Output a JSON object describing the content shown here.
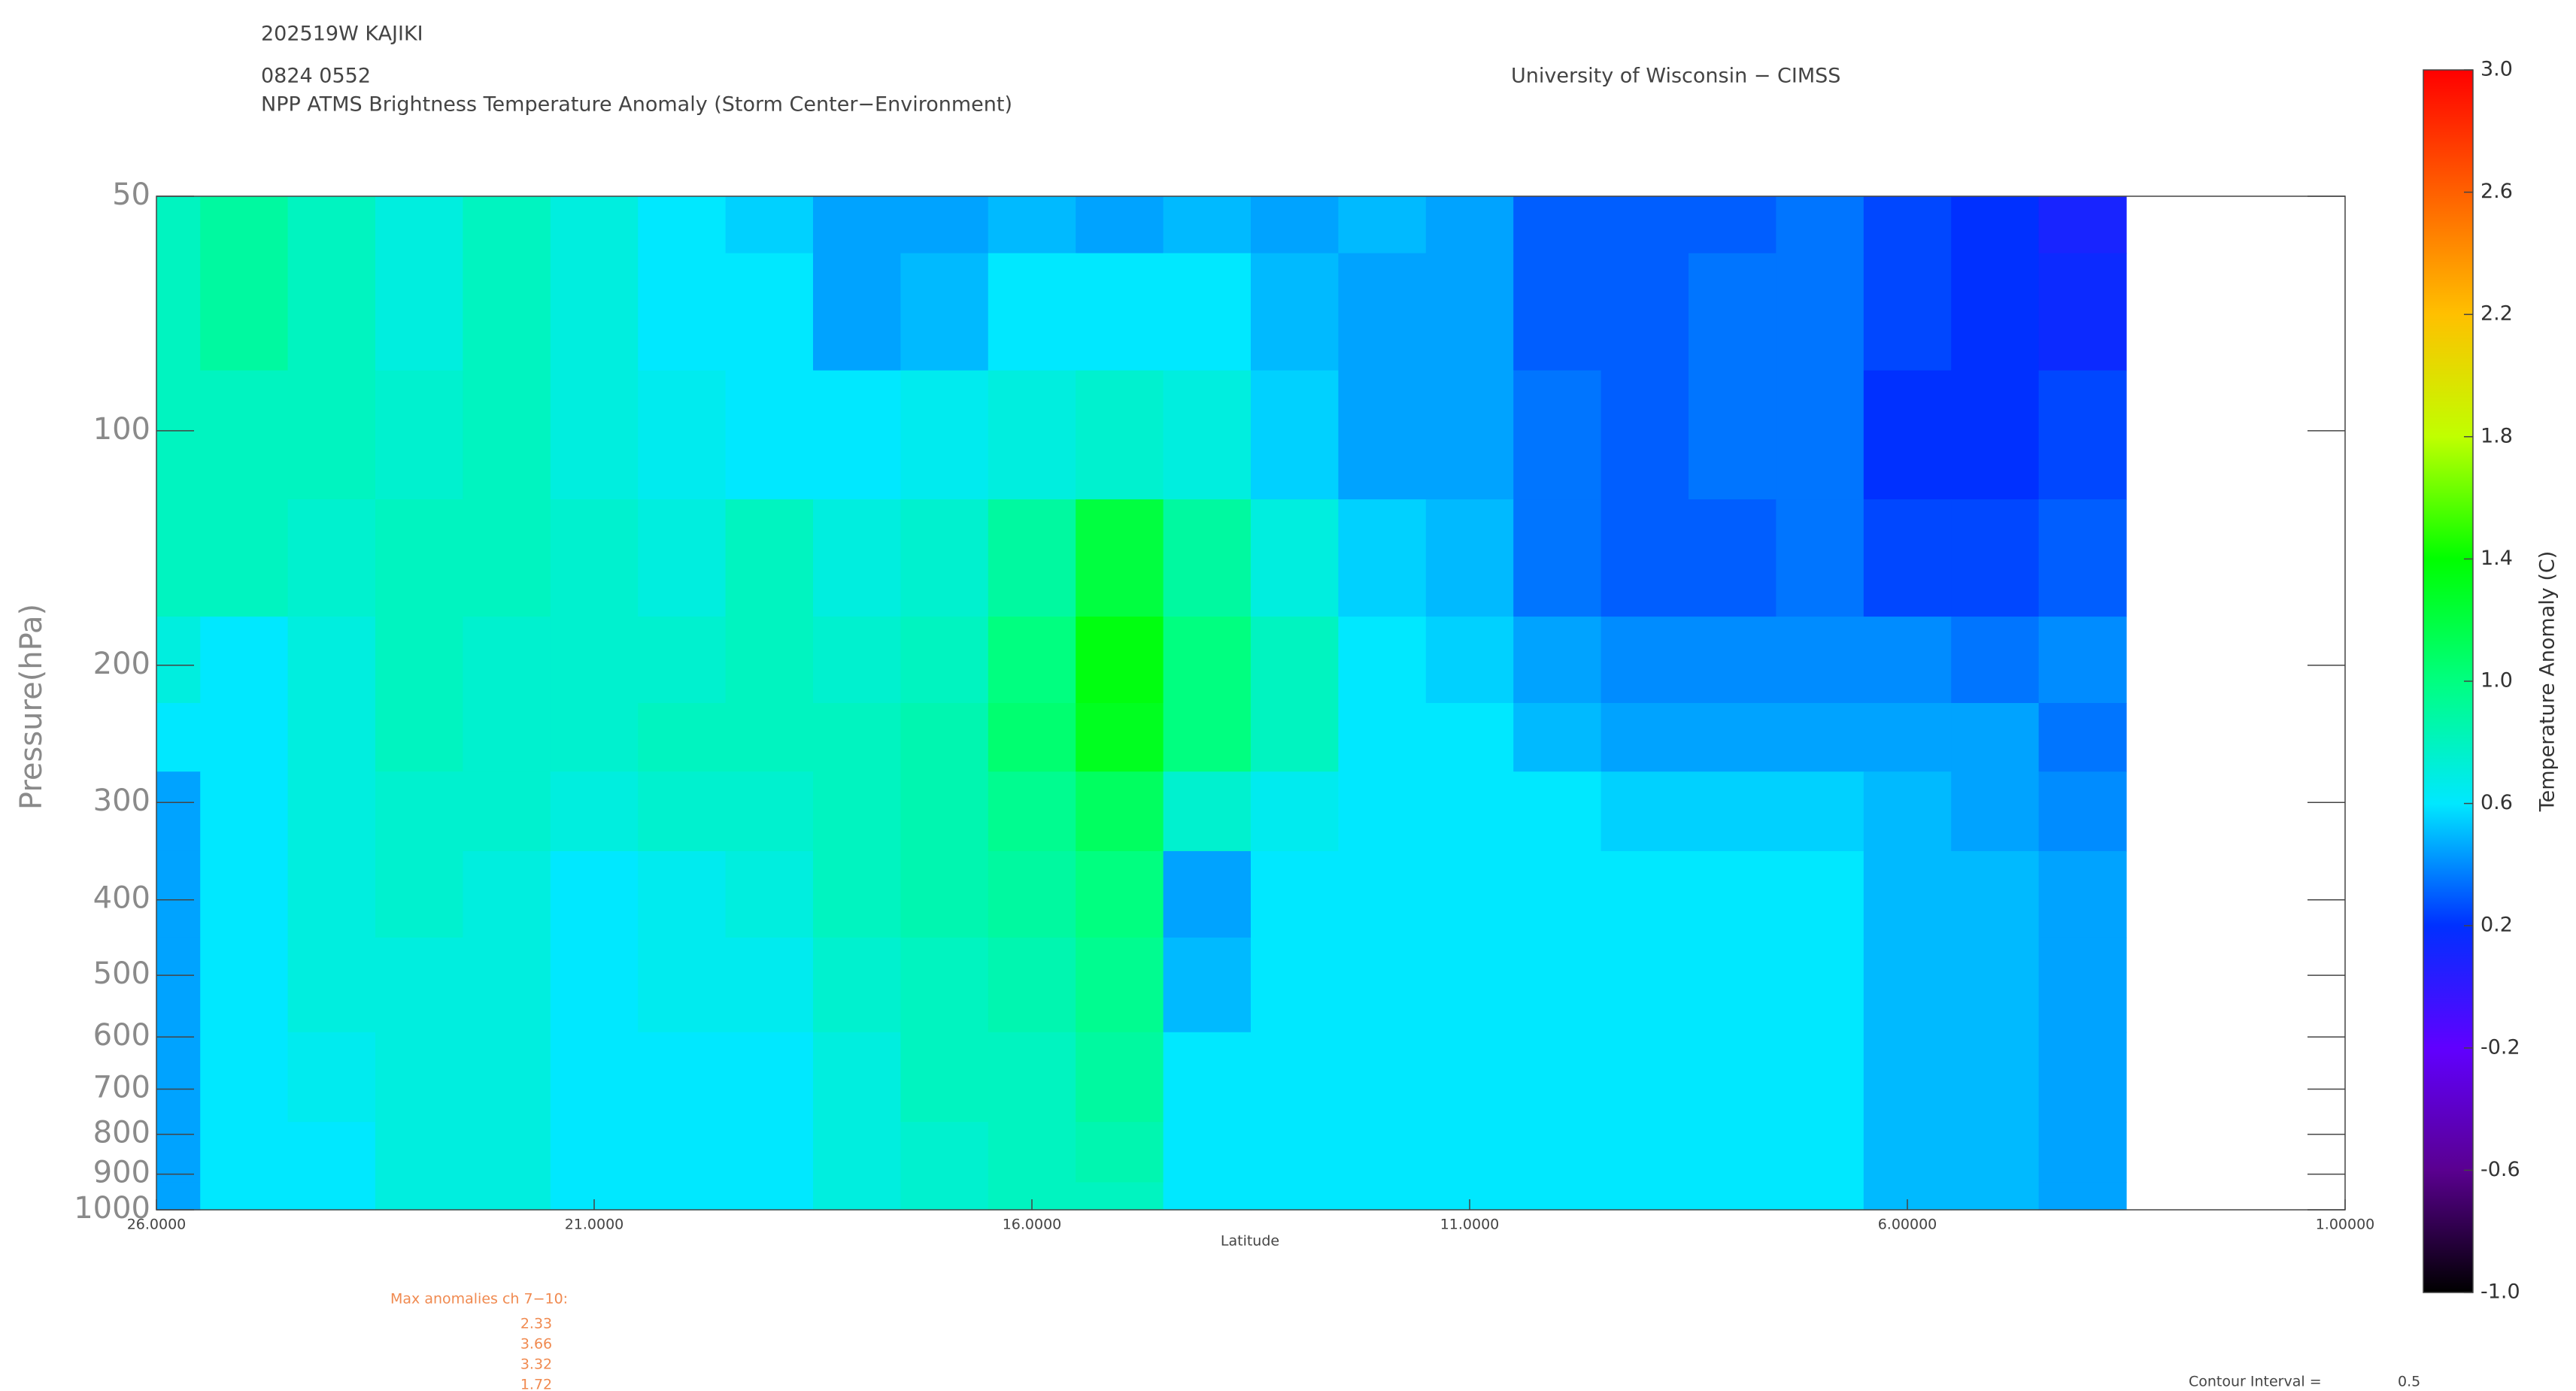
{
  "chart_data": {
    "type": "heatmap",
    "id": "202519W KAJIKI",
    "datetime": "0824 0552",
    "title": "NPP ATMS Brightness Temperature Anomaly (Storm Center−Environment)",
    "source": "University of Wisconsin − CIMSS",
    "xlabel": "Latitude",
    "ylabel": "Pressure(hPa)",
    "xlim": [
      26,
      1
    ],
    "xticks": [
      {
        "value": 26,
        "label": "26.0000"
      },
      {
        "value": 21,
        "label": "21.0000"
      },
      {
        "value": 16,
        "label": "16.0000"
      },
      {
        "value": 11,
        "label": "11.0000"
      },
      {
        "value": 6,
        "label": "6.00000"
      },
      {
        "value": 1,
        "label": "1.00000"
      }
    ],
    "ylim": [
      50,
      1000
    ],
    "yscale": "log",
    "yticks": [
      50,
      100,
      200,
      300,
      400,
      500,
      600,
      700,
      800,
      900,
      1000
    ],
    "x": [
      26,
      25,
      24,
      23,
      22,
      21,
      20,
      19,
      18,
      17,
      16,
      15,
      14,
      13,
      12,
      11,
      10,
      9,
      8,
      7,
      6,
      5,
      4
    ],
    "y": [
      50,
      70,
      100,
      150,
      200,
      250,
      300,
      400,
      500,
      700,
      850,
      1000
    ],
    "z": [
      [
        0.8,
        0.9,
        0.8,
        0.7,
        0.8,
        0.7,
        0.6,
        0.55,
        0.45,
        0.45,
        0.5,
        0.45,
        0.5,
        0.45,
        0.5,
        0.45,
        0.3,
        0.3,
        0.3,
        0.35,
        0.25,
        0.2,
        0.1
      ],
      [
        0.8,
        0.9,
        0.8,
        0.7,
        0.8,
        0.7,
        0.6,
        0.6,
        0.45,
        0.5,
        0.6,
        0.6,
        0.6,
        0.5,
        0.45,
        0.45,
        0.3,
        0.3,
        0.35,
        0.35,
        0.25,
        0.2,
        0.15
      ],
      [
        0.8,
        0.8,
        0.8,
        0.75,
        0.8,
        0.7,
        0.65,
        0.6,
        0.6,
        0.65,
        0.7,
        0.75,
        0.7,
        0.55,
        0.45,
        0.45,
        0.35,
        0.3,
        0.35,
        0.35,
        0.2,
        0.2,
        0.25
      ],
      [
        0.8,
        0.8,
        0.75,
        0.8,
        0.8,
        0.75,
        0.7,
        0.8,
        0.7,
        0.75,
        0.9,
        1.2,
        0.9,
        0.7,
        0.55,
        0.5,
        0.35,
        0.3,
        0.3,
        0.35,
        0.25,
        0.25,
        0.3
      ],
      [
        0.7,
        0.6,
        0.7,
        0.8,
        0.75,
        0.75,
        0.75,
        0.8,
        0.75,
        0.8,
        1.0,
        1.35,
        1.0,
        0.8,
        0.6,
        0.55,
        0.45,
        0.4,
        0.4,
        0.4,
        0.4,
        0.35,
        0.4
      ],
      [
        0.6,
        0.6,
        0.7,
        0.8,
        0.75,
        0.75,
        0.8,
        0.8,
        0.8,
        0.85,
        1.05,
        1.3,
        1.0,
        0.8,
        0.6,
        0.6,
        0.5,
        0.45,
        0.45,
        0.45,
        0.45,
        0.45,
        0.35
      ],
      [
        0.45,
        0.6,
        0.7,
        0.75,
        0.75,
        0.7,
        0.75,
        0.75,
        0.8,
        0.85,
        0.95,
        1.1,
        0.75,
        0.65,
        0.6,
        0.6,
        0.6,
        0.55,
        0.55,
        0.55,
        0.5,
        0.45,
        0.4
      ],
      [
        0.45,
        0.6,
        0.7,
        0.75,
        0.7,
        0.6,
        0.65,
        0.7,
        0.8,
        0.85,
        0.9,
        1.0,
        0.45,
        0.6,
        0.6,
        0.6,
        0.6,
        0.6,
        0.6,
        0.6,
        0.5,
        0.5,
        0.45
      ],
      [
        0.45,
        0.6,
        0.7,
        0.7,
        0.7,
        0.6,
        0.65,
        0.65,
        0.75,
        0.8,
        0.85,
        0.95,
        0.5,
        0.6,
        0.6,
        0.6,
        0.6,
        0.6,
        0.6,
        0.6,
        0.5,
        0.5,
        0.45
      ],
      [
        0.45,
        0.6,
        0.65,
        0.7,
        0.7,
        0.6,
        0.6,
        0.6,
        0.7,
        0.8,
        0.8,
        0.9,
        0.6,
        0.6,
        0.6,
        0.6,
        0.6,
        0.6,
        0.6,
        0.6,
        0.5,
        0.5,
        0.45
      ],
      [
        0.45,
        0.6,
        0.6,
        0.7,
        0.7,
        0.6,
        0.6,
        0.6,
        0.7,
        0.75,
        0.8,
        0.85,
        0.6,
        0.6,
        0.6,
        0.6,
        0.6,
        0.6,
        0.6,
        0.6,
        0.5,
        0.5,
        0.45
      ],
      [
        0.45,
        0.6,
        0.6,
        0.7,
        0.7,
        0.6,
        0.6,
        0.6,
        0.7,
        0.75,
        0.8,
        0.8,
        0.6,
        0.6,
        0.6,
        0.6,
        0.6,
        0.6,
        0.6,
        0.6,
        0.5,
        0.5,
        0.45
      ]
    ],
    "colorbar": {
      "label": "Temperature Anomaly (C)",
      "clim": [
        -1,
        3
      ],
      "ticks": [
        {
          "value": -1,
          "label": "-1.0"
        },
        {
          "value": -0.6,
          "label": "-0.6"
        },
        {
          "value": -0.2,
          "label": "-0.2"
        },
        {
          "value": 0.2,
          "label": "0.2"
        },
        {
          "value": 0.6,
          "label": "0.6"
        },
        {
          "value": 1,
          "label": "1.0"
        },
        {
          "value": 1.4,
          "label": "1.4"
        },
        {
          "value": 1.8,
          "label": "1.8"
        },
        {
          "value": 2.2,
          "label": "2.2"
        },
        {
          "value": 2.6,
          "label": "2.6"
        },
        {
          "value": 3,
          "label": "3.0"
        }
      ],
      "colors": [
        "#000000",
        "#5a0090",
        "#6000ff",
        "#0030ff",
        "#00e8ff",
        "#00ff80",
        "#00ff00",
        "#c0ff00",
        "#ffc000",
        "#ff6000",
        "#ff0000"
      ]
    },
    "max_anomalies_label": "Max anomalies ch 7−10:",
    "max_anomalies": [
      2.33,
      3.66,
      3.32,
      1.72
    ],
    "contour_interval_label": "Contour Interval =",
    "contour_interval": 0.5
  }
}
